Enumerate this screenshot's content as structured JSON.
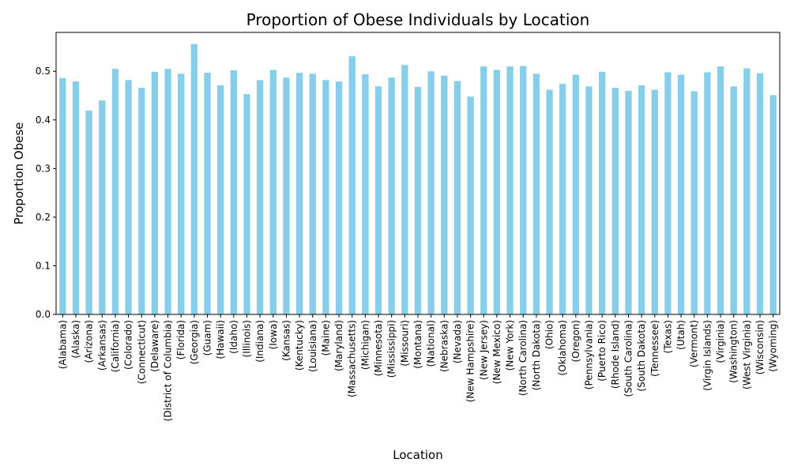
{
  "chart_data": {
    "type": "bar",
    "title": "Proportion of Obese Individuals by Location",
    "xlabel": "Location",
    "ylabel": "Proportion Obese",
    "ylim": [
      0,
      0.58
    ],
    "yticks": [
      "0.0",
      "0.1",
      "0.2",
      "0.3",
      "0.4",
      "0.5"
    ],
    "grid": false,
    "bar_color": "#87ceeb",
    "categories": [
      "(Alabama)",
      "(Alaska)",
      "(Arizona)",
      "(Arkansas)",
      "(California)",
      "(Colorado)",
      "(Connecticut)",
      "(Delaware)",
      "(District of Columbia)",
      "(Florida)",
      "(Georgia)",
      "(Guam)",
      "(Hawaii)",
      "(Idaho)",
      "(Illinois)",
      "(Indiana)",
      "(Iowa)",
      "(Kansas)",
      "(Kentucky)",
      "(Louisiana)",
      "(Maine)",
      "(Maryland)",
      "(Massachusetts)",
      "(Michigan)",
      "(Minnesota)",
      "(Mississippi)",
      "(Missouri)",
      "(Montana)",
      "(National)",
      "(Nebraska)",
      "(Nevada)",
      "(New Hampshire)",
      "(New Jersey)",
      "(New Mexico)",
      "(New York)",
      "(North Carolina)",
      "(North Dakota)",
      "(Ohio)",
      "(Oklahoma)",
      "(Oregon)",
      "(Pennsylvania)",
      "(Puerto Rico)",
      "(Rhode Island)",
      "(South Carolina)",
      "(South Dakota)",
      "(Tennessee)",
      "(Texas)",
      "(Utah)",
      "(Vermont)",
      "(Virgin Islands)",
      "(Virginia)",
      "(Washington)",
      "(West Virginia)",
      "(Wisconsin)",
      "(Wyoming)"
    ],
    "values": [
      0.486,
      0.479,
      0.419,
      0.44,
      0.505,
      0.482,
      0.466,
      0.499,
      0.505,
      0.495,
      0.556,
      0.497,
      0.471,
      0.502,
      0.453,
      0.482,
      0.503,
      0.487,
      0.497,
      0.495,
      0.482,
      0.479,
      0.531,
      0.494,
      0.469,
      0.487,
      0.513,
      0.468,
      0.5,
      0.491,
      0.48,
      0.448,
      0.51,
      0.503,
      0.51,
      0.511,
      0.495,
      0.462,
      0.474,
      0.493,
      0.469,
      0.499,
      0.466,
      0.46,
      0.471,
      0.462,
      0.498,
      0.493,
      0.459,
      0.498,
      0.51,
      0.469,
      0.506,
      0.496,
      0.451
    ]
  }
}
